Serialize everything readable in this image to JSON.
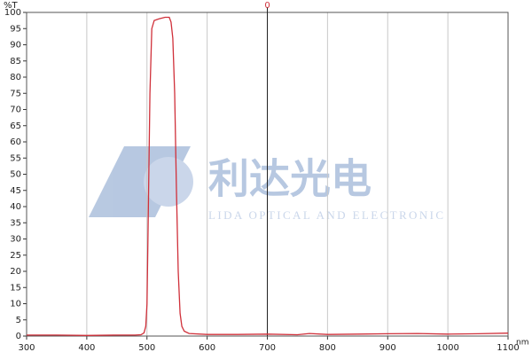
{
  "chart_data": {
    "type": "line",
    "y_label": "%T",
    "x_label": "nm",
    "watermark_cn": "利达光电",
    "watermark_en": "LIDA OPTICAL AND ELECTRONIC",
    "cursor_x": 700,
    "cursor_label": "0",
    "x": [
      300,
      350,
      400,
      450,
      480,
      490,
      495,
      498,
      500,
      502,
      505,
      508,
      512,
      520,
      530,
      537,
      540,
      543,
      546,
      549,
      552,
      555,
      558,
      562,
      570,
      600,
      650,
      700,
      750,
      770,
      800,
      850,
      900,
      950,
      1000,
      1050,
      1100
    ],
    "series": [
      {
        "name": "T",
        "color": "#d0303a",
        "values": [
          0.3,
          0.3,
          0.2,
          0.3,
          0.3,
          0.4,
          1,
          3,
          10,
          35,
          75,
          95,
          97.5,
          98,
          98.5,
          98.5,
          97,
          92,
          75,
          45,
          20,
          7,
          3,
          1.5,
          0.8,
          0.5,
          0.5,
          0.6,
          0.4,
          0.8,
          0.5,
          0.6,
          0.7,
          0.8,
          0.6,
          0.7,
          0.9
        ]
      }
    ],
    "xlim": [
      300,
      1100
    ],
    "ylim": [
      0,
      100
    ],
    "xticks": [
      300,
      400,
      500,
      600,
      700,
      800,
      900,
      1000,
      1100
    ],
    "yticks": [
      0,
      5,
      10,
      15,
      20,
      25,
      30,
      35,
      40,
      45,
      50,
      55,
      60,
      65,
      70,
      75,
      80,
      85,
      90,
      95,
      100
    ],
    "grid": true
  }
}
